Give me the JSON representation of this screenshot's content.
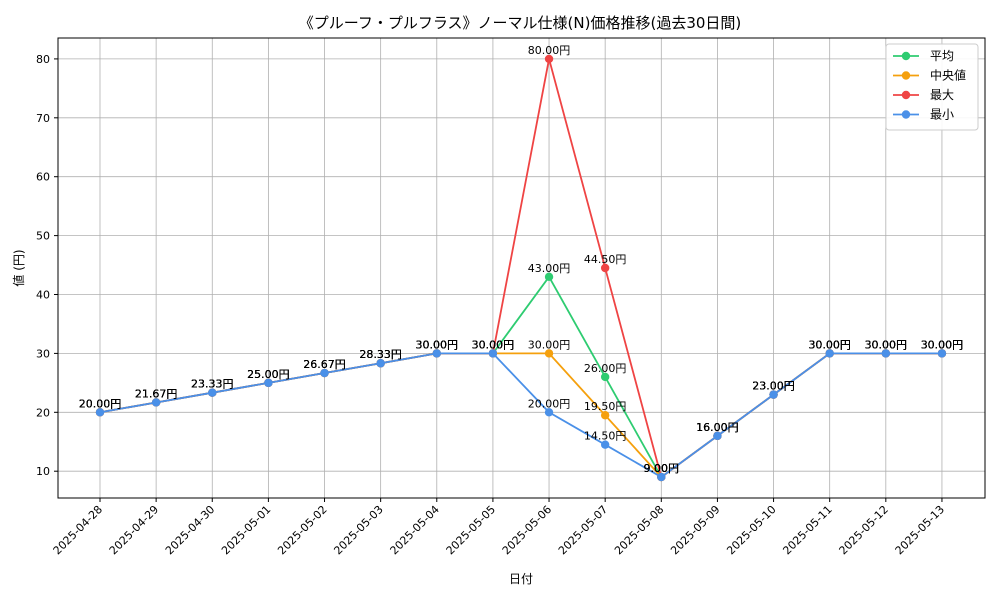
{
  "chart_data": {
    "type": "line",
    "title": "《プルーフ・プルフラス》ノーマル仕様(N)価格推移(過去30日間)",
    "xlabel": "日付",
    "ylabel": "値 (円)",
    "categories": [
      "2025-04-28",
      "2025-04-29",
      "2025-04-30",
      "2025-05-01",
      "2025-05-02",
      "2025-05-03",
      "2025-05-04",
      "2025-05-05",
      "2025-05-06",
      "2025-05-07",
      "2025-05-08",
      "2025-05-09",
      "2025-05-10",
      "2025-05-11",
      "2025-05-12",
      "2025-05-13"
    ],
    "yticks": [
      10,
      20,
      30,
      40,
      50,
      60,
      70,
      80
    ],
    "ylim": [
      5.45,
      83.55
    ],
    "grid": true,
    "legend_position": "top-right",
    "label_suffix": "円",
    "series": [
      {
        "name": "平均",
        "color": "#2ecc71",
        "values": [
          20,
          21.67,
          23.33,
          25,
          26.67,
          28.33,
          30,
          30,
          43,
          26,
          9,
          16,
          23,
          30,
          30,
          30
        ]
      },
      {
        "name": "中央値",
        "color": "#f5a00d",
        "values": [
          20,
          21.67,
          23.33,
          25,
          26.67,
          28.33,
          30,
          30,
          30,
          19.5,
          9,
          16,
          23,
          30,
          30,
          30
        ]
      },
      {
        "name": "最大",
        "color": "#ef4444",
        "values": [
          20,
          21.67,
          23.33,
          25,
          26.67,
          28.33,
          30,
          30,
          80,
          44.5,
          9,
          16,
          23,
          30,
          30,
          30
        ]
      },
      {
        "name": "最小",
        "color": "#4a90e8",
        "values": [
          20,
          21.67,
          23.33,
          25,
          26.67,
          28.33,
          30,
          30,
          20,
          14.5,
          9,
          16,
          23,
          30,
          30,
          30
        ]
      }
    ]
  }
}
